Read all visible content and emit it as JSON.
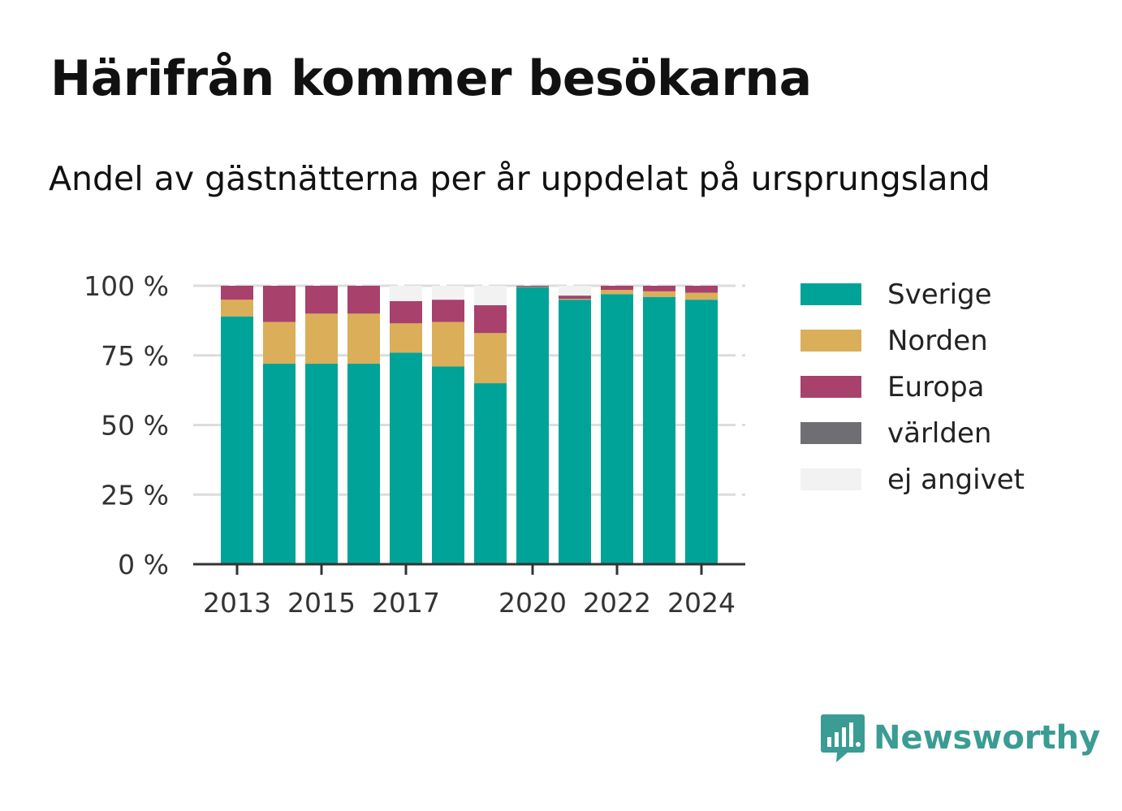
{
  "header": {
    "title": "Härifrån kommer besökarna",
    "subtitle": "Andel av gästnätterna per år uppdelat på ursprungsland"
  },
  "brand": {
    "name": "Newsworthy",
    "icon": "bar-chart-speech-bubble-icon",
    "color": "#3a9c93"
  },
  "chart_data": {
    "type": "bar",
    "stacked": true,
    "categories": [
      "2013",
      "2014",
      "2015",
      "2016",
      "2017",
      "2018",
      "2019",
      "2020",
      "2021",
      "2022",
      "2023",
      "2024"
    ],
    "x_tick_labels": [
      "2013",
      "2015",
      "2017",
      "2020",
      "2022",
      "2024"
    ],
    "y_tick_labels": [
      "0 %",
      "25 %",
      "50 %",
      "75 %",
      "100 %"
    ],
    "y_ticks": [
      0,
      25,
      50,
      75,
      100
    ],
    "ylim": [
      0,
      100
    ],
    "grid": true,
    "legend_position": "right",
    "series": [
      {
        "name": "Sverige",
        "color": "#00a398",
        "values": [
          89,
          72,
          72,
          72,
          76,
          71,
          65,
          99.5,
          95,
          97,
          96,
          95
        ]
      },
      {
        "name": "Norden",
        "color": "#dbae59",
        "values": [
          6,
          15,
          18,
          18,
          10.5,
          16,
          18,
          0.1,
          0.3,
          1.5,
          2,
          2.5
        ]
      },
      {
        "name": "Europa",
        "color": "#a8416b",
        "values": [
          5,
          13,
          10,
          10,
          8,
          8,
          10,
          0.4,
          1,
          1.5,
          2,
          2.5
        ]
      },
      {
        "name": "världen",
        "color": "#6e6e73",
        "values": [
          0,
          0,
          0,
          0,
          0,
          0,
          0,
          0,
          0.2,
          0,
          0,
          0
        ]
      },
      {
        "name": "ej angivet",
        "color": "#f3f2f3",
        "values": [
          0,
          0,
          0,
          0,
          5.5,
          5,
          7,
          0,
          3.5,
          0,
          0,
          0
        ]
      }
    ]
  }
}
